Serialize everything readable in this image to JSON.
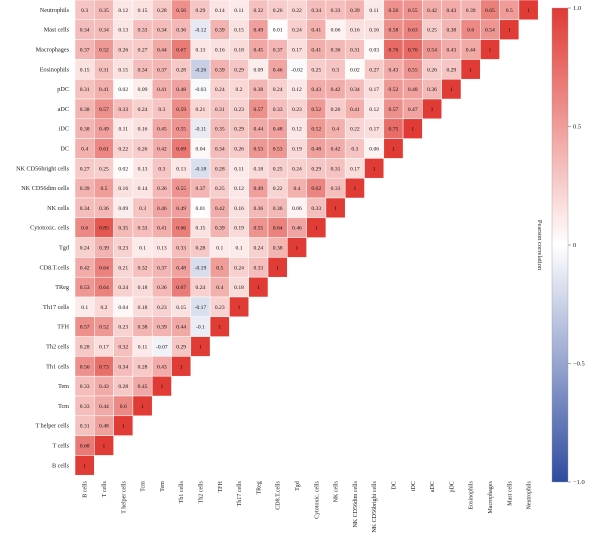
{
  "chart_data": {
    "type": "heatmap",
    "title": "",
    "colorbar_label": "Pearson correlation",
    "colorbar_range": [
      -1.0,
      1.0
    ],
    "colorbar_ticks": [
      "1.0",
      "0.5",
      "0",
      "−0.5",
      "−1.0"
    ],
    "colorbar_tick_values": [
      1.0,
      0.5,
      0,
      -0.5,
      -1.0
    ],
    "colors": {
      "high": "#e03b34",
      "mid": "#ffffff",
      "low": "#2e4b9f"
    },
    "rows": [
      "Neutrophils",
      "Mast cells",
      "Macrophages",
      "Eosinophils",
      "pDC",
      "aDC",
      "iDC",
      "DC",
      "NK CD56bright cells",
      "NK CD56dim cells",
      "NK cells",
      "Cytotoxic. cells",
      "Tgd",
      "CD8.T.cells",
      "TReg",
      "Th17 cells",
      "TFH",
      "Th2 cells",
      "Th1 cells",
      "Tem",
      "Tcm",
      "T helper cells",
      "T cells",
      "B cells"
    ],
    "columns": [
      "B cells",
      "T cells",
      "T helper cells",
      "Tcm",
      "Tem",
      "Th1 cells",
      "Th2 cells",
      "TFH",
      "Th17 cells",
      "TReg",
      "CD8.T.cells",
      "Tgd",
      "Cytotoxic. cells",
      "NK cells",
      "NK CD56dim cells",
      "NK CD56bright cells",
      "DC",
      "iDC",
      "aDC",
      "pDC",
      "Eosinophils",
      "Macrophages",
      "Mast cells",
      "Neutrophils"
    ],
    "values": [
      [
        0.3,
        0.35,
        0.12,
        0.15,
        0.28,
        0.56,
        0.29,
        0.14,
        0.11,
        0.32,
        0.26,
        0.22,
        0.34,
        0.33,
        0.39,
        0.11,
        0.56,
        0.55,
        0.42,
        0.43,
        0.39,
        0.65,
        0.5,
        1
      ],
      [
        0.34,
        0.34,
        0.13,
        0.33,
        0.34,
        0.36,
        -0.12,
        0.39,
        0.15,
        0.49,
        0.01,
        0.24,
        0.41,
        0.06,
        0.16,
        0.16,
        0.58,
        0.63,
        0.25,
        0.38,
        0.6,
        0.54,
        1
      ],
      [
        0.37,
        0.52,
        0.26,
        0.27,
        0.44,
        0.67,
        0.13,
        0.16,
        0.18,
        0.45,
        0.37,
        0.17,
        0.41,
        0.36,
        0.31,
        0.03,
        0.76,
        0.76,
        0.54,
        0.43,
        0.44,
        1
      ],
      [
        0.15,
        0.31,
        0.15,
        0.34,
        0.37,
        0.28,
        -0.26,
        0.39,
        0.29,
        0.09,
        0.46,
        -0.02,
        0.25,
        0.3,
        0.02,
        0.27,
        0.43,
        0.55,
        0.26,
        0.29,
        1
      ],
      [
        0.31,
        0.41,
        0.02,
        0.09,
        0.41,
        0.48,
        -0.03,
        0.24,
        0.2,
        0.38,
        0.24,
        0.12,
        0.43,
        0.42,
        0.34,
        0.17,
        0.52,
        0.48,
        0.36,
        1
      ],
      [
        0.38,
        0.57,
        0.33,
        0.24,
        0.3,
        0.59,
        0.21,
        0.31,
        0.23,
        0.57,
        0.33,
        0.23,
        0.52,
        0.26,
        0.41,
        0.12,
        0.57,
        0.47,
        1
      ],
      [
        0.38,
        0.49,
        0.11,
        0.16,
        0.45,
        0.55,
        -0.11,
        0.35,
        0.29,
        0.44,
        0.48,
        0.12,
        0.52,
        0.4,
        0.22,
        0.17,
        0.75,
        1
      ],
      [
        0.4,
        0.61,
        0.22,
        0.26,
        0.42,
        0.69,
        0.04,
        0.34,
        0.26,
        0.53,
        0.53,
        0.19,
        0.48,
        0.42,
        0.3,
        0.06,
        1
      ],
      [
        0.27,
        0.25,
        0.02,
        0.13,
        0.3,
        0.13,
        -0.18,
        0.28,
        0.11,
        0.18,
        0.25,
        0.24,
        0.29,
        0.31,
        0.17,
        1
      ],
      [
        0.39,
        0.5,
        0.16,
        0.14,
        0.36,
        0.55,
        0.37,
        0.25,
        0.12,
        0.49,
        0.22,
        0.4,
        0.62,
        0.33,
        1
      ],
      [
        0.34,
        0.36,
        0.09,
        0.3,
        0.46,
        0.49,
        0.01,
        0.42,
        0.16,
        0.36,
        0.36,
        0.06,
        0.33,
        1
      ],
      [
        0.6,
        0.85,
        0.35,
        0.33,
        0.41,
        0.66,
        0.15,
        0.39,
        0.19,
        0.55,
        0.64,
        0.46,
        1
      ],
      [
        0.24,
        0.39,
        0.23,
        0.1,
        0.13,
        0.33,
        0.28,
        0.1,
        0.1,
        0.24,
        0.38,
        1
      ],
      [
        0.42,
        0.64,
        0.21,
        0.32,
        0.37,
        0.48,
        -0.19,
        0.5,
        0.24,
        0.33,
        1
      ],
      [
        0.53,
        0.64,
        0.24,
        0.18,
        0.36,
        0.67,
        0.24,
        0.4,
        0.18,
        1
      ],
      [
        0.1,
        0.2,
        0.04,
        0.18,
        0.23,
        0.15,
        -0.17,
        0.23,
        1
      ],
      [
        0.57,
        0.52,
        0.23,
        0.38,
        0.39,
        0.44,
        -0.1,
        1
      ],
      [
        0.28,
        0.17,
        0.32,
        0.11,
        -0.07,
        0.29,
        1
      ],
      [
        0.56,
        0.73,
        0.34,
        0.28,
        0.43,
        1
      ],
      [
        0.33,
        0.43,
        0.28,
        0.45,
        1
      ],
      [
        0.33,
        0.44,
        0.6,
        1
      ],
      [
        0.31,
        0.48,
        1
      ],
      [
        0.68,
        1
      ],
      [
        1
      ]
    ]
  }
}
